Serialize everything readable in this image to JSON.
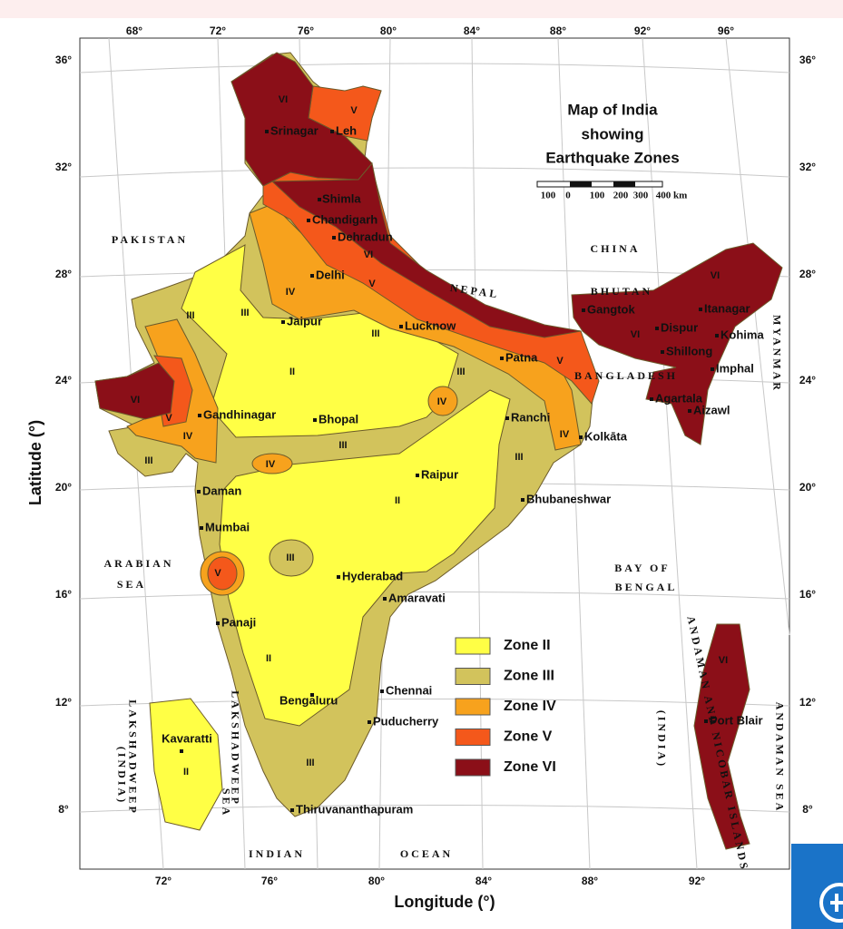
{
  "map": {
    "title": [
      "Map of India",
      "showing",
      "Earthquake Zones"
    ],
    "scale": [
      "100",
      "0",
      "100",
      "200",
      "300",
      "400 km"
    ],
    "x_axis_label": "Longitude (°)",
    "y_axis_label": "Latitude (°)",
    "top_ticks": [
      "68°",
      "72°",
      "76°",
      "80°",
      "84°",
      "88°",
      "92°",
      "96°"
    ],
    "bottom_ticks": [
      "72°",
      "76°",
      "80°",
      "84°",
      "88°",
      "92°"
    ],
    "left_ticks": [
      "36°",
      "32°",
      "28°",
      "24°",
      "20°",
      "16°",
      "12°",
      "8°"
    ],
    "right_ticks": [
      "36°",
      "32°",
      "28°",
      "24°",
      "20°",
      "16°",
      "12°",
      "8°"
    ],
    "cities": [
      "Srinagar",
      "Leh",
      "Shimla",
      "Chandigarh",
      "Dehradun",
      "Delhi",
      "Jaipur",
      "Lucknow",
      "Patna",
      "Gandhinagar",
      "Bhopal",
      "Ranchi",
      "Kolkāta",
      "Raipur",
      "Daman",
      "Bhubaneshwar",
      "Mumbai",
      "Hyderabad",
      "Amaravati",
      "Panaji",
      "Chennai",
      "Bengaluru",
      "Puducherry",
      "Kavaratti",
      "Thiruvananthapuram",
      "Gangtok",
      "Dispur",
      "Itanagar",
      "Kohima",
      "Shillong",
      "Imphal",
      "Agartala",
      "Aizawl",
      "Port Blair"
    ],
    "countries": [
      "PAKISTAN",
      "CHINA",
      "NEPAL",
      "BHUTAN",
      "BANGLADESH",
      "MYANMAR"
    ],
    "water": [
      "ARABIAN",
      "SEA",
      "BAY OF",
      "BENGAL",
      "LAKSHADWEEP",
      "SEA",
      "LAKSHADWEEP",
      "(INDIA)",
      "ANDAMAN AND NICOBAR ISLANDS",
      "(INDIA)",
      "ANDAMAN SEA",
      "INDIAN",
      "OCEAN"
    ],
    "zone_marks": [
      "VI",
      "V",
      "VI",
      "V",
      "IV",
      "III",
      "III",
      "III",
      "II",
      "III",
      "IV",
      "V",
      "VI",
      "VI",
      "VI",
      "V",
      "IV",
      "III",
      "III",
      "IV",
      "II",
      "III",
      "IV",
      "V",
      "III",
      "II",
      "III",
      "II",
      "VI"
    ],
    "legend": [
      {
        "name": "Zone II",
        "color": "#ffff45"
      },
      {
        "name": "Zone III",
        "color": "#d2c35c"
      },
      {
        "name": "Zone IV",
        "color": "#f7a21d"
      },
      {
        "name": "Zone V",
        "color": "#f4581b"
      },
      {
        "name": "Zone VI",
        "color": "#8b0f18"
      }
    ]
  }
}
